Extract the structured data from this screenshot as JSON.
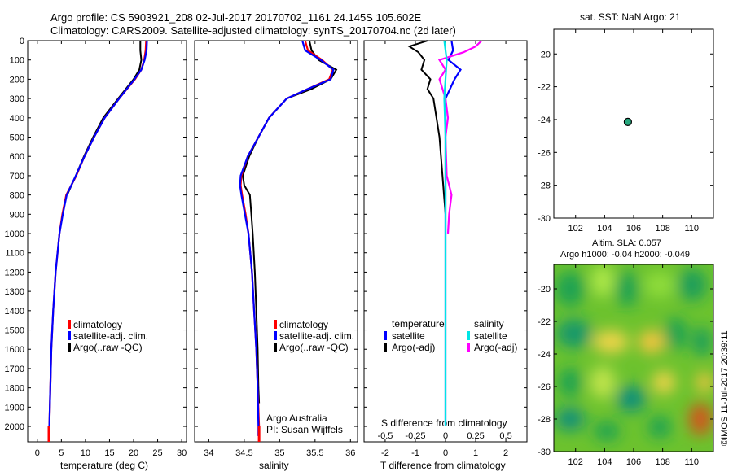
{
  "header": {
    "line1": "Argo profile: CS 5903921_208 02-Jul-2017 20170702_1161 24.145S 105.602E",
    "line2": "Climatology: CARS2009. Satellite-adjusted climatology: synTS_20170704.nc (2d later)"
  },
  "chart_data": [
    {
      "type": "line",
      "name": "temperature",
      "xlabel": "temperature (deg C)",
      "ylabel": "",
      "xlim": [
        -2,
        31
      ],
      "ylim": [
        2080,
        0
      ],
      "xticks": [
        0,
        5,
        10,
        15,
        20,
        25,
        30
      ],
      "yticks": [
        0,
        100,
        200,
        300,
        400,
        500,
        600,
        700,
        800,
        900,
        1000,
        1100,
        1200,
        1300,
        1400,
        1500,
        1600,
        1700,
        1800,
        1900,
        2000
      ],
      "legend": [
        "climatology",
        "satellite-adj. clim.",
        "Argo(..raw -QC)"
      ],
      "series": [
        {
          "name": "climatology",
          "color": "#ff0000",
          "depth": [
            0,
            50,
            100,
            150,
            200,
            300,
            400,
            500,
            600,
            700,
            800,
            900,
            1000,
            1200,
            1400,
            1600,
            1800,
            2000,
            2050
          ],
          "values": [
            22.6,
            22.5,
            22.2,
            21.6,
            20.3,
            17.0,
            14.0,
            11.8,
            9.8,
            8.1,
            6.0,
            5.2,
            4.6,
            3.8,
            3.3,
            2.9,
            2.7,
            2.5,
            2.4
          ]
        },
        {
          "name": "satellite-adj. clim.",
          "color": "#0000ff",
          "depth": [
            0,
            50,
            100,
            150,
            200,
            300,
            400,
            500,
            600,
            700,
            800,
            900,
            1000,
            1200,
            1400,
            1600,
            1800,
            2000,
            2050
          ],
          "values": [
            22.8,
            22.7,
            22.3,
            21.6,
            20.2,
            17.0,
            14.0,
            11.8,
            9.8,
            8.0,
            6.1,
            5.3,
            4.6,
            3.8,
            3.3,
            2.9,
            2.7,
            2.5,
            2.4
          ]
        },
        {
          "name": "Argo(..raw -QC)",
          "color": "#000000",
          "depth": [
            0,
            50,
            100,
            150,
            200,
            300,
            400,
            500,
            600,
            700,
            800
          ],
          "values": [
            21.4,
            21.4,
            21.6,
            21.2,
            20.0,
            16.8,
            13.7,
            11.6,
            9.7,
            8.0,
            6.2
          ]
        }
      ]
    },
    {
      "type": "line",
      "name": "salinity",
      "xlabel": "salinity",
      "xlim": [
        33.8,
        36.1
      ],
      "ylim": [
        2080,
        0
      ],
      "xticks": [
        34,
        34.5,
        35,
        35.5,
        36
      ],
      "legend": [
        "climatology",
        "satellite-adj. clim.",
        "Argo(..raw -QC)"
      ],
      "annotation": [
        "Argo Australia",
        "PI: Susan Wijffels"
      ],
      "series": [
        {
          "name": "climatology",
          "color": "#ff0000",
          "depth": [
            0,
            50,
            100,
            150,
            200,
            250,
            300,
            400,
            500,
            600,
            700,
            750,
            800,
            900,
            1000,
            1200,
            1400,
            1600,
            1800,
            2000,
            2050
          ],
          "values": [
            35.36,
            35.4,
            35.6,
            35.75,
            35.7,
            35.4,
            35.1,
            34.85,
            34.7,
            34.55,
            34.46,
            34.45,
            34.47,
            34.52,
            34.56,
            34.61,
            34.64,
            34.67,
            34.69,
            34.71,
            34.71
          ]
        },
        {
          "name": "satellite-adj. clim.",
          "color": "#0000ff",
          "depth": [
            0,
            50,
            100,
            150,
            200,
            250,
            300,
            400,
            500,
            600,
            700,
            750,
            800,
            900,
            1000,
            1200,
            1400,
            1600,
            1800,
            2000,
            2050
          ],
          "values": [
            35.32,
            35.36,
            35.58,
            35.76,
            35.72,
            35.4,
            35.1,
            34.85,
            34.7,
            34.55,
            34.45,
            34.44,
            34.46,
            34.51,
            34.56,
            34.61,
            34.64,
            34.67,
            34.69,
            34.7,
            34.7
          ]
        },
        {
          "name": "Argo(..raw -QC)",
          "color": "#000000",
          "depth": [
            0,
            50,
            100,
            150,
            200,
            250,
            300,
            400,
            500,
            600,
            700,
            750,
            800,
            900,
            1000,
            1200,
            1400,
            1600,
            1800,
            1880
          ],
          "values": [
            35.42,
            35.45,
            35.55,
            35.8,
            35.72,
            35.45,
            35.1,
            34.85,
            34.7,
            34.57,
            34.48,
            34.5,
            34.58,
            34.6,
            34.62,
            34.65,
            34.67,
            34.69,
            34.7,
            34.71
          ]
        }
      ]
    },
    {
      "type": "line",
      "name": "difference",
      "xlabel": "T difference from climatology",
      "xlabel2": "S difference from climatology",
      "xlim": [
        -2.7,
        2.7
      ],
      "ylim": [
        2080,
        0
      ],
      "xticks": [
        -2,
        -1,
        0,
        1,
        2
      ],
      "xticks2": [
        "-0.5",
        "-0.25",
        "0",
        "0.25",
        "0.5"
      ],
      "legend_titles": [
        "temperature",
        "salinity"
      ],
      "legend": [
        "satellite",
        "Argo(-adj)",
        "satellite",
        "Argo(-adj)"
      ],
      "series": [
        {
          "name": "satellite",
          "group": "temperature",
          "color": "#0000ff",
          "depth": [
            0,
            50,
            100,
            150,
            200,
            300,
            500,
            1000,
            2000
          ],
          "values": [
            0.2,
            0.25,
            0.1,
            0.5,
            0.3,
            0.0,
            0.0,
            0.0,
            0.0
          ]
        },
        {
          "name": "Argo(-adj)",
          "group": "temperature",
          "color": "#000000",
          "depth": [
            0,
            30,
            60,
            100,
            150,
            200,
            250,
            300,
            400,
            500,
            700,
            800,
            900,
            1000,
            1200,
            1400,
            1600,
            1700
          ],
          "values": [
            -0.6,
            -1.2,
            -0.9,
            -0.7,
            -0.8,
            -0.5,
            -0.6,
            -0.4,
            -0.3,
            -0.2,
            -0.1,
            -0.05,
            0.0,
            0.0,
            0.0,
            0.0,
            0.0,
            0.0
          ]
        },
        {
          "name": "satellite",
          "group": "salinity",
          "color": "#00e5e5",
          "depth": [
            0,
            100,
            200,
            300,
            500,
            1000,
            2000
          ],
          "values": [
            -0.01,
            0.01,
            0.0,
            -0.01,
            0.0,
            0.0,
            0.0
          ]
        },
        {
          "name": "Argo(-adj)",
          "group": "salinity",
          "color": "#ff00ff",
          "depth": [
            0,
            30,
            60,
            100,
            150,
            200,
            300,
            400,
            500,
            700,
            800,
            900,
            1000
          ],
          "values": [
            0.3,
            0.25,
            0.15,
            -0.05,
            0.0,
            -0.05,
            0.0,
            0.02,
            0.0,
            0.01,
            0.05,
            0.03,
            0.02
          ]
        }
      ]
    },
    {
      "type": "scatter",
      "name": "location-map",
      "title": "sat. SST: NaN Argo: 21",
      "xlim": [
        100.5,
        111.5
      ],
      "ylim": [
        -30,
        -18.5
      ],
      "xticks": [
        102,
        104,
        106,
        108,
        110
      ],
      "yticks": [
        -20,
        -22,
        -24,
        -26,
        -28,
        -30
      ],
      "point": {
        "x": 105.602,
        "y": -24.145,
        "color": "#27a87e"
      }
    },
    {
      "type": "heatmap",
      "name": "sla-map",
      "title": "Altim. SLA: 0.057",
      "subtitle": "Argo h1000: -0.04 h2000: -0.049",
      "xlim": [
        100.5,
        111.5
      ],
      "ylim": [
        -30,
        -18.5
      ],
      "xticks": [
        102,
        104,
        106,
        108,
        110
      ],
      "yticks": [
        -20,
        -22,
        -24,
        -26,
        -28,
        -30
      ],
      "side_label": "©IMOS 11-Jul-2017 20:39:11"
    }
  ]
}
